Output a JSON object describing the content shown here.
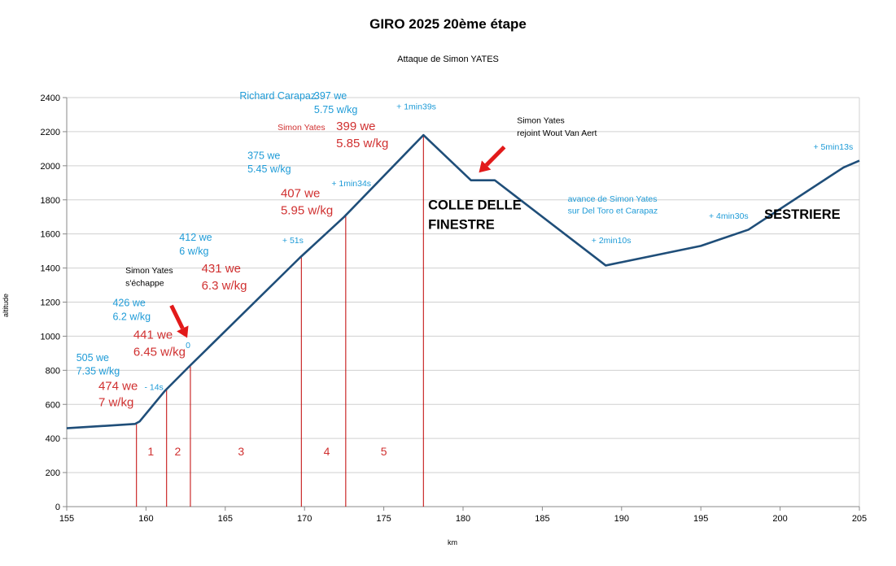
{
  "colors": {
    "profile": "#1f4e79",
    "markers": "#c00000",
    "blue_text": "#1e9bd7",
    "red_text": "#d03030",
    "grid": "#d0d0d0",
    "arrow": "#e21a1a"
  },
  "chart_data": {
    "type": "line",
    "title": "GIRO 2025 20ème étape",
    "subtitle": "Attaque de Simon YATES",
    "xlabel": "km",
    "ylabel": "altitude",
    "xlim": [
      155,
      205
    ],
    "ylim": [
      0,
      2400
    ],
    "x_ticks": [
      155,
      160,
      165,
      170,
      175,
      180,
      185,
      190,
      195,
      200,
      205
    ],
    "y_ticks": [
      0,
      200,
      400,
      600,
      800,
      1000,
      1200,
      1400,
      1600,
      1800,
      2000,
      2200,
      2400
    ],
    "grid": true,
    "legend": "none",
    "series": [
      {
        "x": [
          155,
          159.3,
          159.6,
          161.2,
          162.7,
          169.7,
          172.5,
          177.5,
          180.5,
          182,
          189,
          195,
          198,
          204,
          205
        ],
        "y": [
          460,
          485,
          500,
          680,
          820,
          1460,
          1700,
          2180,
          1915,
          1915,
          1415,
          1530,
          1625,
          1990,
          2030
        ]
      }
    ],
    "segment_markers_km": [
      159.4,
      161.3,
      162.8,
      169.8,
      172.6,
      177.5
    ],
    "segment_numbers": [
      {
        "label": "1",
        "x": 160.3,
        "y": 300
      },
      {
        "label": "2",
        "x": 162.0,
        "y": 300
      },
      {
        "label": "3",
        "x": 166.0,
        "y": 300
      },
      {
        "label": "4",
        "x": 171.4,
        "y": 300
      },
      {
        "label": "5",
        "x": 175.0,
        "y": 300
      }
    ],
    "annotations": [
      {
        "text": "505 we",
        "x": 155.6,
        "y": 855,
        "color": "blue",
        "size": "m"
      },
      {
        "text": "7.35 w/kg",
        "x": 155.6,
        "y": 775,
        "color": "blue",
        "size": "m"
      },
      {
        "text": "474 we",
        "x": 157.0,
        "y": 685,
        "color": "red",
        "size": "l"
      },
      {
        "text": "7 w/kg",
        "x": 157.0,
        "y": 590,
        "color": "red",
        "size": "l"
      },
      {
        "text": "- 14s",
        "x": 159.9,
        "y": 685,
        "color": "blue",
        "size": "s"
      },
      {
        "text": "441 we",
        "x": 159.2,
        "y": 985,
        "color": "red",
        "size": "l"
      },
      {
        "text": "6.45 w/kg",
        "x": 159.2,
        "y": 885,
        "color": "red",
        "size": "l"
      },
      {
        "text": "0",
        "x": 162.5,
        "y": 930,
        "color": "blue",
        "size": "s"
      },
      {
        "text": "426 we",
        "x": 157.9,
        "y": 1175,
        "color": "blue",
        "size": "m"
      },
      {
        "text": "6.2 w/kg",
        "x": 157.9,
        "y": 1095,
        "color": "blue",
        "size": "m"
      },
      {
        "text": "Simon Yates",
        "x": 158.7,
        "y": 1370,
        "color": "black",
        "size": "s"
      },
      {
        "text": "s'échappe",
        "x": 158.7,
        "y": 1295,
        "color": "black",
        "size": "s"
      },
      {
        "text": "431 we",
        "x": 163.5,
        "y": 1375,
        "color": "red",
        "size": "l"
      },
      {
        "text": "6.3 w/kg",
        "x": 163.5,
        "y": 1275,
        "color": "red",
        "size": "l"
      },
      {
        "text": "412 we",
        "x": 162.1,
        "y": 1560,
        "color": "blue",
        "size": "m"
      },
      {
        "text": "6 w/kg",
        "x": 162.1,
        "y": 1480,
        "color": "blue",
        "size": "m"
      },
      {
        "text": "+ 51s",
        "x": 168.6,
        "y": 1545,
        "color": "blue",
        "size": "s"
      },
      {
        "text": "407 we",
        "x": 168.5,
        "y": 1815,
        "color": "red",
        "size": "l"
      },
      {
        "text": "5.95 w/kg",
        "x": 168.5,
        "y": 1715,
        "color": "red",
        "size": "l"
      },
      {
        "text": "+ 1min34s",
        "x": 171.7,
        "y": 1880,
        "color": "blue",
        "size": "s"
      },
      {
        "text": "375 we",
        "x": 166.4,
        "y": 2040,
        "color": "blue",
        "size": "m"
      },
      {
        "text": "5.45 w/kg",
        "x": 166.4,
        "y": 1960,
        "color": "blue",
        "size": "m"
      },
      {
        "text": "Simon Yates",
        "x": 168.3,
        "y": 2210,
        "color": "red",
        "size": "s"
      },
      {
        "text": "399 we",
        "x": 172.0,
        "y": 2210,
        "color": "red",
        "size": "l"
      },
      {
        "text": "5.85 w/kg",
        "x": 172.0,
        "y": 2110,
        "color": "red",
        "size": "l"
      },
      {
        "text": "Richard Carapaz",
        "x": 165.9,
        "y": 2390,
        "color": "blue",
        "size": "m"
      },
      {
        "text": "397 we",
        "x": 170.6,
        "y": 2390,
        "color": "blue",
        "size": "m"
      },
      {
        "text": "5.75 w/kg",
        "x": 170.6,
        "y": 2310,
        "color": "blue",
        "size": "m"
      },
      {
        "text": "+ 1min39s",
        "x": 175.8,
        "y": 2330,
        "color": "blue",
        "size": "s"
      },
      {
        "text": "COLLE DELLE",
        "x": 177.8,
        "y": 1745,
        "color": "black",
        "size": "xl"
      },
      {
        "text": "FINESTRE",
        "x": 177.8,
        "y": 1630,
        "color": "black",
        "size": "xl"
      },
      {
        "text": "Simon Yates",
        "x": 183.4,
        "y": 2250,
        "color": "black",
        "size": "s"
      },
      {
        "text": "rejoint Wout Van Aert",
        "x": 183.4,
        "y": 2175,
        "color": "black",
        "size": "s"
      },
      {
        "text": "avance de Simon Yates",
        "x": 186.6,
        "y": 1790,
        "color": "blue",
        "size": "s"
      },
      {
        "text": "sur Del Toro et Carapaz",
        "x": 186.6,
        "y": 1720,
        "color": "blue",
        "size": "s"
      },
      {
        "text": "+ 2min10s",
        "x": 188.1,
        "y": 1545,
        "color": "blue",
        "size": "s"
      },
      {
        "text": "+ 4min30s",
        "x": 195.5,
        "y": 1690,
        "color": "blue",
        "size": "s"
      },
      {
        "text": "SESTRIERE",
        "x": 199.0,
        "y": 1690,
        "color": "black",
        "size": "xl"
      },
      {
        "text": "+ 5min13s",
        "x": 202.1,
        "y": 2095,
        "color": "blue",
        "size": "s"
      }
    ],
    "arrows": [
      {
        "from": [
          161.6,
          1180
        ],
        "to": [
          162.6,
          990
        ]
      },
      {
        "from": [
          182.6,
          2110
        ],
        "to": [
          181.0,
          1960
        ]
      }
    ]
  }
}
